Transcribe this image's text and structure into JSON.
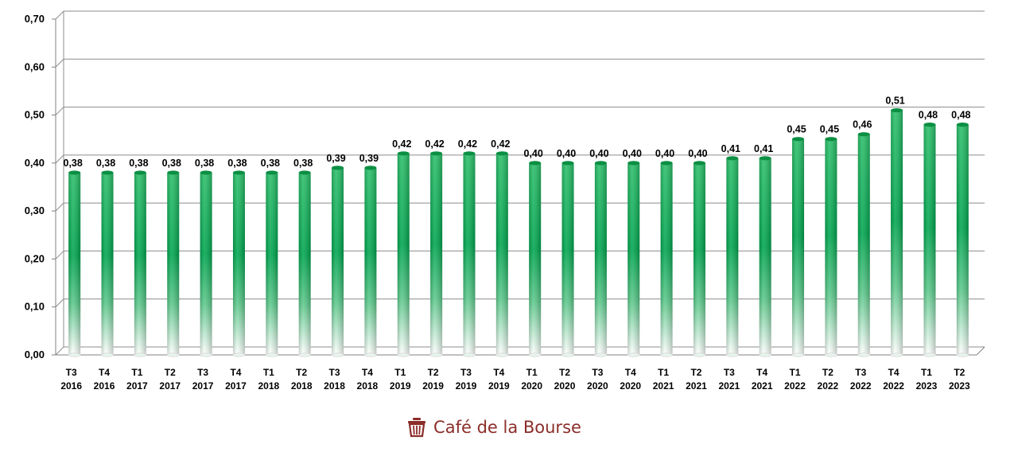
{
  "chart_data": {
    "type": "bar",
    "categories": [
      [
        "T3",
        "2016"
      ],
      [
        "T4",
        "2016"
      ],
      [
        "T1",
        "2017"
      ],
      [
        "T2",
        "2017"
      ],
      [
        "T3",
        "2017"
      ],
      [
        "T4",
        "2017"
      ],
      [
        "T1",
        "2018"
      ],
      [
        "T2",
        "2018"
      ],
      [
        "T3",
        "2018"
      ],
      [
        "T4",
        "2018"
      ],
      [
        "T1",
        "2019"
      ],
      [
        "T2",
        "2019"
      ],
      [
        "T3",
        "2019"
      ],
      [
        "T4",
        "2019"
      ],
      [
        "T1",
        "2020"
      ],
      [
        "T2",
        "2020"
      ],
      [
        "T3",
        "2020"
      ],
      [
        "T4",
        "2020"
      ],
      [
        "T1",
        "2021"
      ],
      [
        "T2",
        "2021"
      ],
      [
        "T3",
        "2021"
      ],
      [
        "T4",
        "2021"
      ],
      [
        "T1",
        "2022"
      ],
      [
        "T2",
        "2022"
      ],
      [
        "T3",
        "2022"
      ],
      [
        "T4",
        "2022"
      ],
      [
        "T1",
        "2023"
      ],
      [
        "T2",
        "2023"
      ]
    ],
    "values": [
      0.38,
      0.38,
      0.38,
      0.38,
      0.38,
      0.38,
      0.38,
      0.38,
      0.39,
      0.39,
      0.42,
      0.42,
      0.42,
      0.42,
      0.4,
      0.4,
      0.4,
      0.4,
      0.4,
      0.4,
      0.41,
      0.41,
      0.45,
      0.45,
      0.46,
      0.51,
      0.48,
      0.48
    ],
    "data_labels": [
      "0,38",
      "0,38",
      "0,38",
      "0,38",
      "0,38",
      "0,38",
      "0,38",
      "0,38",
      "0,39",
      "0,39",
      "0,42",
      "0,42",
      "0,42",
      "0,42",
      "0,40",
      "0,40",
      "0,40",
      "0,40",
      "0,40",
      "0,40",
      "0,41",
      "0,41",
      "0,45",
      "0,45",
      "0,46",
      "0,51",
      "0,48",
      "0,48"
    ],
    "y_ticks": [
      0,
      0.1,
      0.2,
      0.3,
      0.4,
      0.5,
      0.6,
      0.7
    ],
    "y_tick_labels": [
      "0,00",
      "0,10",
      "0,20",
      "0,30",
      "0,40",
      "0,50",
      "0,60",
      "0,70"
    ],
    "ylim": [
      0,
      0.7
    ],
    "grid": true,
    "legend": "none",
    "bar_color_top": "#00a64f",
    "bar_color_bottom": "#ffffff"
  },
  "branding": {
    "logo_text": "Café de la Bourse",
    "logo_color": "#8b2e2a"
  }
}
